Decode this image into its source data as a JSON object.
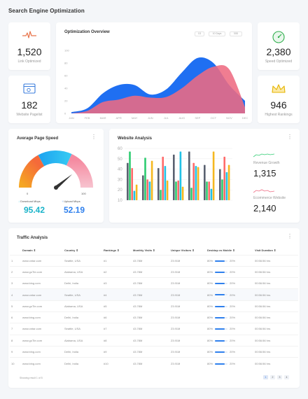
{
  "page": {
    "title": "Search Engine Optimization"
  },
  "stats": [
    {
      "value": "1,520",
      "label": "Link Optimized",
      "icon": "pulse-heart-icon",
      "color": "#e8734a"
    },
    {
      "value": "182",
      "label": "Website Pagelist",
      "icon": "browser-window-icon",
      "color": "#3b7ddd"
    },
    {
      "value": "2,380",
      "label": "Speed Optimized",
      "icon": "speedometer-icon",
      "color": "#2fae4c"
    },
    {
      "value": "946",
      "label": "Highest Rankings",
      "icon": "crown-icon",
      "color": "#e6b400"
    }
  ],
  "optimization": {
    "title": "Optimization Overview",
    "filters": [
      "1D",
      "10 Days",
      "30D"
    ],
    "colors": {
      "blue": "#1f6ff2",
      "red": "#ee6b82"
    }
  },
  "chart_data": [
    {
      "type": "area",
      "title": "Optimization Overview",
      "x": [
        "JAN",
        "FEB",
        "MAR",
        "APR",
        "MAY",
        "JUN",
        "JUL",
        "AUG",
        "SEP",
        "OCT",
        "NOV",
        "DEC"
      ],
      "y_ticks": [
        "0",
        "20",
        "40",
        "60",
        "80",
        "100"
      ],
      "ylim": [
        0,
        100
      ],
      "series": [
        {
          "values": [
            2,
            8,
            32,
            45,
            45,
            30,
            38,
            65,
            88,
            80,
            45,
            20
          ]
        },
        {
          "values": [
            0,
            4,
            18,
            22,
            28,
            25,
            26,
            40,
            60,
            74,
            70,
            10
          ]
        }
      ]
    },
    {
      "type": "bar",
      "title": "Website Analysis",
      "y_ticks": [
        "10",
        "20",
        "30",
        "40",
        "50",
        "60"
      ],
      "ylim": [
        10,
        60
      ],
      "series": [
        {
          "color": "#5a6170",
          "values": [
            46,
            34,
            41,
            54,
            57,
            44,
            40
          ]
        },
        {
          "color": "#2ecc71",
          "values": [
            57,
            51,
            20,
            28,
            22,
            28,
            30
          ]
        },
        {
          "color": "#ff6b6b",
          "values": [
            41,
            30,
            52,
            29,
            46,
            28,
            52
          ]
        },
        {
          "color": "#22c1e6",
          "values": [
            19,
            28,
            43,
            57,
            43,
            21,
            37
          ]
        },
        {
          "color": "#f5b820",
          "values": [
            25,
            48,
            29,
            23,
            42,
            57,
            44
          ]
        }
      ]
    },
    {
      "type": "gauge",
      "title": "Average Page Speed",
      "min": 0,
      "max": 100,
      "value": 78
    }
  ],
  "speed": {
    "title": "Average Page Speed",
    "min_label": "0",
    "max_label": "100",
    "download_label": "Download Mbps",
    "download_value": "95.42",
    "upload_label": "Upload Mbps",
    "upload_value": "52.19",
    "colors": {
      "download": "#19b3c9",
      "upload": "#2f80ed"
    }
  },
  "website": {
    "title": "Website Analysis",
    "revenue_label": "Revenue Growth",
    "revenue_value": "1,315",
    "ecom_label": "Ecommerce Website",
    "ecom_value": "2,140"
  },
  "traffic": {
    "title": "Traffic Analysis",
    "headers": [
      "",
      "Domain ⇕",
      "Country ⇕",
      "Rankings ⇕",
      "Monthly Visits ⇕",
      "Unique Visitors ⇕",
      "Desktop vs Mobile ⇕",
      "Visit Duration ⇕"
    ],
    "rows": [
      {
        "n": "1",
        "domain": "www.ontar.com",
        "country": "Seattle, USA",
        "rank": "#1",
        "visits": "43.78M",
        "unique": "23.91M",
        "desktop": "80%",
        "mobile": "20%",
        "desktop_frac": 0.8,
        "duration": "00:56:56 hrs"
      },
      {
        "n": "2",
        "domain": "www.goTie.com",
        "country": "Alabama, USA",
        "rank": "#2",
        "visits": "43.78M",
        "unique": "23.91M",
        "desktop": "80%",
        "mobile": "20%",
        "desktop_frac": 0.8,
        "duration": "00:56:56 hrs"
      },
      {
        "n": "3",
        "domain": "www.bing.com",
        "country": "Delhi, India",
        "rank": "#3",
        "visits": "43.78M",
        "unique": "23.91M",
        "desktop": "80%",
        "mobile": "20%",
        "desktop_frac": 0.8,
        "duration": "00:56:56 hrs"
      },
      {
        "n": "4",
        "domain": "www.ontar.com",
        "country": "Seattle, USA",
        "rank": "#4",
        "visits": "43.78M",
        "unique": "23.91M",
        "desktop": "80%",
        "mobile": "20%",
        "desktop_frac": 0.8,
        "duration": "00:56:56 hrs"
      },
      {
        "n": "5",
        "domain": "www.goTie.com",
        "country": "Alabama, USA",
        "rank": "#5",
        "visits": "43.78M",
        "unique": "23.91M",
        "desktop": "80%",
        "mobile": "20%",
        "desktop_frac": 0.8,
        "duration": "00:56:56 hrs"
      },
      {
        "n": "6",
        "domain": "www.bing.com",
        "country": "Delhi, India",
        "rank": "#6",
        "visits": "43.78M",
        "unique": "23.91M",
        "desktop": "80%",
        "mobile": "20%",
        "desktop_frac": 0.8,
        "duration": "00:56:56 hrs"
      },
      {
        "n": "7",
        "domain": "www.ontar.com",
        "country": "Seattle, USA",
        "rank": "#7",
        "visits": "43.78M",
        "unique": "23.91M",
        "desktop": "80%",
        "mobile": "20%",
        "desktop_frac": 0.8,
        "duration": "00:56:56 hrs"
      },
      {
        "n": "8",
        "domain": "www.goTie.com",
        "country": "Alabama, USA",
        "rank": "#8",
        "visits": "43.78M",
        "unique": "23.91M",
        "desktop": "80%",
        "mobile": "20%",
        "desktop_frac": 0.8,
        "duration": "00:56:56 hrs"
      },
      {
        "n": "9",
        "domain": "www.bing.com",
        "country": "Delhi, India",
        "rank": "#9",
        "visits": "43.78M",
        "unique": "23.91M",
        "desktop": "80%",
        "mobile": "20%",
        "desktop_frac": 0.8,
        "duration": "00:56:56 hrs"
      },
      {
        "n": "10",
        "domain": "www.bing.com",
        "country": "Delhi, India",
        "rank": "#10",
        "visits": "43.78M",
        "unique": "23.91M",
        "desktop": "80%",
        "mobile": "20%",
        "desktop_frac": 0.8,
        "duration": "00:56:56 hrs"
      }
    ],
    "footer": "Showing result 1 of 5",
    "pages": [
      "1",
      "2",
      "3",
      "4"
    ]
  },
  "icons": {
    "more": "⋮",
    "download": "↓",
    "upload": "↑"
  }
}
